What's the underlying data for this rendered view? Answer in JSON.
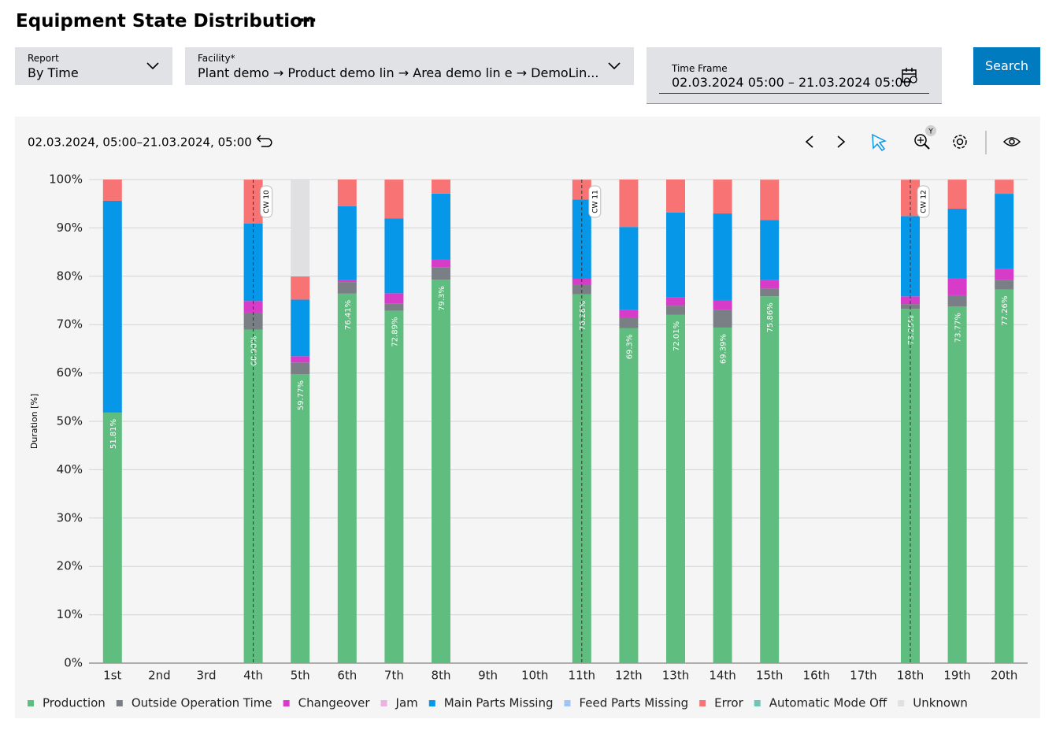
{
  "header": {
    "title": "Equipment State Distribution"
  },
  "filters": {
    "report": {
      "label": "Report",
      "value": "By Time"
    },
    "facility": {
      "label": "Facility*",
      "value": "Plant demo → Product demo lin → Area demo lin e → DemoLin..."
    },
    "time_frame": {
      "label": "Time Frame",
      "value": "02.03.2024 05:00 – 21.03.2024 05:00"
    },
    "search": "Search"
  },
  "chart_data": {
    "type": "bar",
    "stacked": true,
    "range_label": "02.03.2024, 05:00–21.03.2024, 05:00",
    "y_label": "Duration [%]",
    "grid": true,
    "categories": [
      "1st",
      "2nd",
      "3rd",
      "4th",
      "5th",
      "6th",
      "7th",
      "8th",
      "9th",
      "10th",
      "11th",
      "12th",
      "13th",
      "14th",
      "15th",
      "16th",
      "17th",
      "18th",
      "19th",
      "20th"
    ],
    "ylim": [
      0,
      100
    ],
    "yticks": [
      {
        "value": 0,
        "label": "0%"
      },
      {
        "value": 10,
        "label": "10%"
      },
      {
        "value": 20,
        "label": "20%"
      },
      {
        "value": 30,
        "label": "30%"
      },
      {
        "value": 40,
        "label": "40%"
      },
      {
        "value": 50,
        "label": "50%"
      },
      {
        "value": 60,
        "label": "60%"
      },
      {
        "value": 70,
        "label": "70%"
      },
      {
        "value": 80,
        "label": "80%"
      },
      {
        "value": 90,
        "label": "90%"
      },
      {
        "value": 100,
        "label": "100%"
      }
    ],
    "series": [
      {
        "name": "Production",
        "color": "#5fbd7f",
        "values": [
          51.81,
          null,
          null,
          68.98,
          59.77,
          76.41,
          72.89,
          79.3,
          null,
          null,
          76.26,
          69.3,
          72.01,
          69.39,
          75.86,
          null,
          null,
          73.25,
          73.77,
          77.26
        ],
        "value_labels": [
          "51.81%",
          null,
          null,
          "68.98%",
          "59.77%",
          "76.41%",
          "72.89%",
          "79.3%",
          null,
          null,
          "76.26%",
          "69.3%",
          "72.01%",
          "69.39%",
          "75.86%",
          null,
          null,
          "73.25%",
          "73.77%",
          "77.26%"
        ]
      },
      {
        "name": "Outside Operation Time",
        "color": "#7a7f85",
        "values": [
          0,
          null,
          null,
          3.5,
          2.4,
          2.4,
          1.5,
          2.5,
          null,
          null,
          2.0,
          2.2,
          1.9,
          3.6,
          1.6,
          null,
          null,
          1.0,
          2.3,
          2.0
        ]
      },
      {
        "name": "Changeover",
        "color": "#d63cc7",
        "values": [
          0,
          null,
          null,
          2.4,
          1.3,
          0.4,
          2.1,
          1.6,
          null,
          null,
          1.3,
          1.5,
          1.8,
          2.1,
          1.8,
          null,
          null,
          1.6,
          3.5,
          2.3
        ]
      },
      {
        "name": "Jam",
        "color": "#e9b4e2",
        "values": [
          0,
          null,
          null,
          0,
          0,
          0,
          0,
          0,
          null,
          null,
          0,
          0,
          0,
          0,
          0,
          null,
          null,
          0,
          0,
          0
        ]
      },
      {
        "name": "Main Parts Missing",
        "color": "#0797e8",
        "values": [
          43.8,
          null,
          null,
          16.0,
          11.7,
          15.3,
          15.5,
          13.7,
          null,
          null,
          16.3,
          17.2,
          17.5,
          17.9,
          12.4,
          null,
          null,
          16.6,
          14.4,
          15.5
        ]
      },
      {
        "name": "Feed Parts Missing",
        "color": "#9ec5f5",
        "values": [
          0,
          null,
          null,
          0,
          0,
          0,
          0,
          0,
          null,
          null,
          0,
          0,
          0,
          0,
          0,
          null,
          null,
          0,
          0,
          0
        ]
      },
      {
        "name": "Error",
        "color": "#f87474",
        "values": [
          4.4,
          null,
          null,
          9.1,
          4.8,
          5.5,
          8.0,
          2.9,
          null,
          null,
          4.1,
          9.8,
          6.8,
          7.0,
          8.3,
          null,
          null,
          7.5,
          6.0,
          2.9
        ]
      },
      {
        "name": "Automatic Mode Off",
        "color": "#6fc5b8",
        "values": [
          0,
          null,
          null,
          0,
          0,
          0,
          0,
          0,
          null,
          null,
          0,
          0,
          0,
          0,
          0,
          null,
          null,
          0,
          0,
          0
        ]
      },
      {
        "name": "Unknown",
        "color": "#e0e0e2",
        "values": [
          0,
          null,
          null,
          0,
          20,
          0,
          0,
          0,
          null,
          null,
          0,
          0,
          0,
          0,
          0,
          null,
          null,
          0,
          0,
          0
        ]
      }
    ],
    "annotations": [
      {
        "label": "CW 10",
        "category": "4th"
      },
      {
        "label": "CW 11",
        "category": "11th"
      },
      {
        "label": "CW 12",
        "category": "18th"
      }
    ]
  }
}
